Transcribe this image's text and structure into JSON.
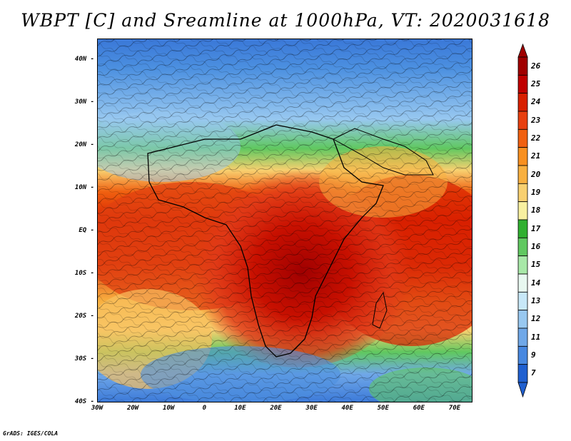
{
  "title": "WBPT [C] and Sreamline at 1000hPa, VT: 2020031618",
  "credit": "GrADS: IGES/COLA",
  "map": {
    "lat_ticks": [
      "40N",
      "30N",
      "20N",
      "10N",
      "EQ",
      "10S",
      "20S",
      "30S",
      "40S"
    ],
    "lon_ticks": [
      "30W",
      "20W",
      "10W",
      "0",
      "10E",
      "20E",
      "30E",
      "40E",
      "50E",
      "60E",
      "70E"
    ],
    "lat_range": [
      -40,
      45
    ],
    "lon_range": [
      -30,
      75
    ]
  },
  "colorbar": {
    "labels": [
      "26",
      "25",
      "24",
      "23",
      "22",
      "21",
      "20",
      "19",
      "18",
      "17",
      "16",
      "15",
      "14",
      "13",
      "12",
      "11",
      "9",
      "7"
    ],
    "colors": [
      "#a00000",
      "#c00000",
      "#d82000",
      "#e84010",
      "#f06010",
      "#f89020",
      "#f8b040",
      "#f8d070",
      "#f8f0a0",
      "#30b030",
      "#60c860",
      "#a8e8a8",
      "#e8f8f0",
      "#c8e8f8",
      "#98c8f0",
      "#70a8e8",
      "#4888e0",
      "#2060d0"
    ]
  }
}
